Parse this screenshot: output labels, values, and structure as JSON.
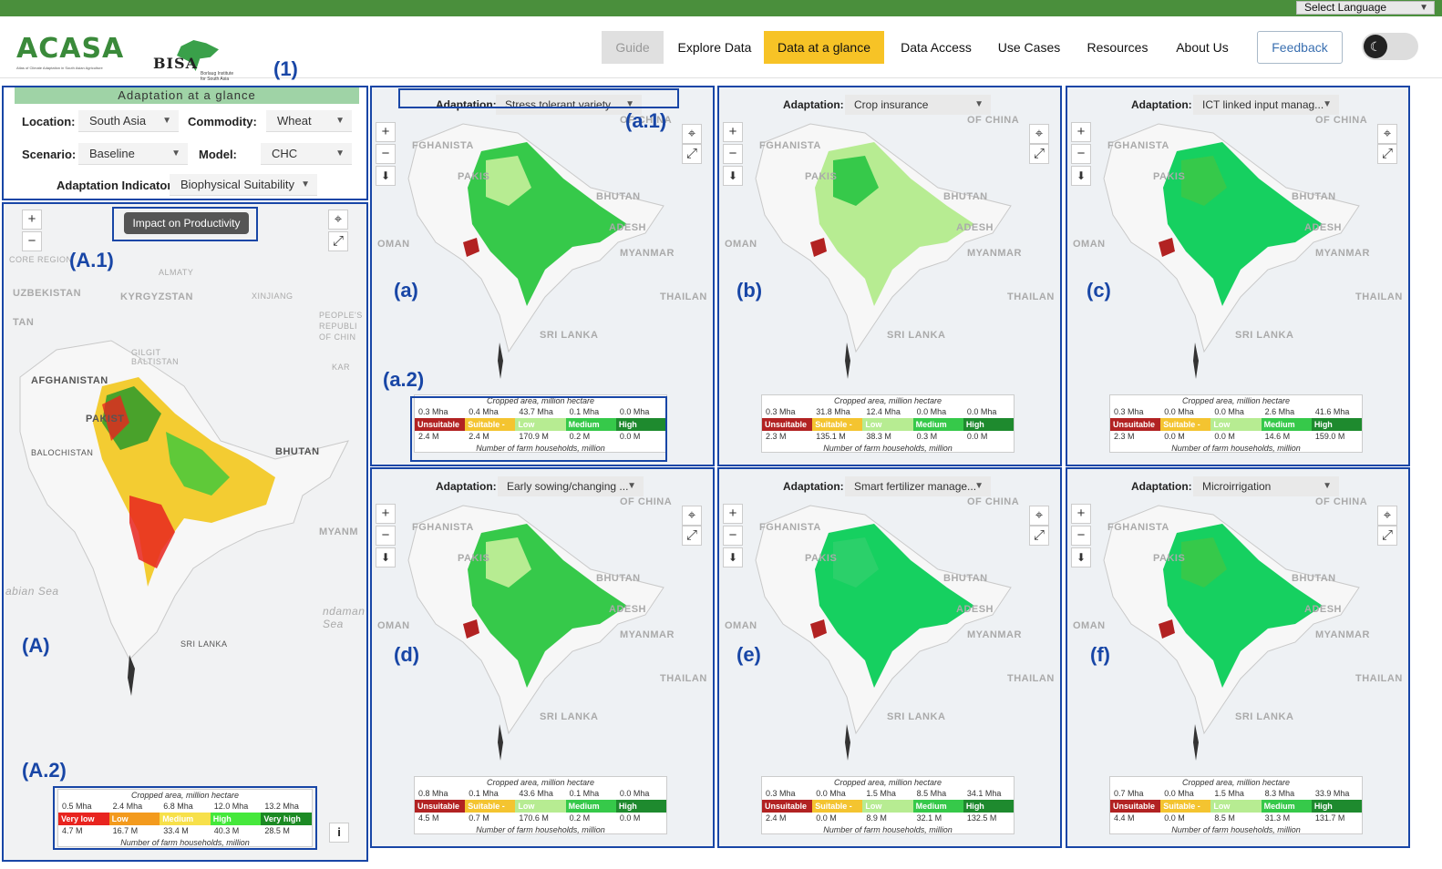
{
  "header": {
    "language_label": "Select Language",
    "logo_text": "ACASA",
    "logo_subtitle": "Atlas of Climate Adaptation in South Asian Agriculture",
    "partner_logo": "BISA",
    "partner_subtitle": "Borlaug Institute for South Asia",
    "nav": [
      "Guide",
      "Explore Data",
      "Data at a glance",
      "Data Access",
      "Use Cases",
      "Resources",
      "About Us"
    ],
    "active_nav": "Data at a glance",
    "feedback_label": "Feedback",
    "theme_toggle_icon": "moon-icon"
  },
  "annotations": {
    "panel": "(1)",
    "main": "(A)",
    "main_btn": "(A.1)",
    "main_legend": "(A.2)",
    "a": "(a)",
    "b": "(b)",
    "c": "(c)",
    "d": "(d)",
    "e": "(e)",
    "f": "(f)",
    "a1": "(a.1)",
    "a2": "(a.2)"
  },
  "controls": {
    "title": "Adaptation at a glance",
    "location_label": "Location:",
    "location_value": "South Asia",
    "commodity_label": "Commodity:",
    "commodity_value": "Wheat",
    "scenario_label": "Scenario:",
    "scenario_value": "Baseline",
    "model_label": "Model:",
    "model_value": "CHC",
    "indicator_label": "Adaptation Indicator:",
    "indicator_value": "Biophysical Suitability"
  },
  "main_map": {
    "impact_button": "Impact on Productivity",
    "info_button": "i",
    "places": [
      "AFGHANISTAN",
      "UZBEKISTAN",
      "KYRGYZSTAN",
      "PAKIST",
      "BALOCHISTAN",
      "BHUTAN",
      "MYANM",
      "SRI LANKA",
      "PEOPLE'S REPUBLI OF CHIN",
      "abian Sea",
      "ndaman Sea",
      "ALMATY",
      "XINJIANG",
      "GILGIT BALTISTAN",
      "KAR",
      "TAN",
      "CORE REGION"
    ],
    "legend": {
      "title": "Cropped area, million hectare",
      "area": [
        "0.5 Mha",
        "2.4 Mha",
        "6.8 Mha",
        "12.0 Mha",
        "13.2 Mha"
      ],
      "classes": [
        "Very low",
        "Low",
        "Medium",
        "High",
        "Very high"
      ],
      "households": [
        "4.7 M",
        "16.7 M",
        "33.4 M",
        "40.3 M",
        "28.5 M"
      ],
      "footer": "Number of farm households, million",
      "colors": [
        "#e8241f",
        "#f39a1d",
        "#f7e04a",
        "#45c93b",
        "#1c8a24"
      ]
    }
  },
  "adaptation_label": "Adaptation:",
  "legend_common": {
    "title": "Cropped area, million hectare",
    "classes": [
      "Unsuitable",
      "Suitable -",
      "Low",
      "Medium",
      "High"
    ],
    "footer": "Number of farm households, million",
    "colors": [
      "#b22222",
      "#f4c430",
      "#b7ec92",
      "#36c94a",
      "#1e8a2e"
    ]
  },
  "panels": [
    {
      "adaptation": "Stress tolerant variety",
      "area": [
        "0.3 Mha",
        "0.4 Mha",
        "43.7 Mha",
        "0.1 Mha",
        "0.0 Mha"
      ],
      "households": [
        "2.4 M",
        "2.4 M",
        "170.9 M",
        "0.2 M",
        "0.0 M"
      ]
    },
    {
      "adaptation": "Crop insurance",
      "area": [
        "0.3 Mha",
        "31.8 Mha",
        "12.4 Mha",
        "0.0 Mha",
        "0.0 Mha"
      ],
      "households": [
        "2.3 M",
        "135.1 M",
        "38.3 M",
        "0.3 M",
        "0.0 M"
      ]
    },
    {
      "adaptation": "ICT linked input manag...",
      "area": [
        "0.3 Mha",
        "0.0 Mha",
        "0.0 Mha",
        "2.6 Mha",
        "41.6 Mha"
      ],
      "households": [
        "2.3 M",
        "0.0 M",
        "0.0 M",
        "14.6 M",
        "159.0 M"
      ]
    },
    {
      "adaptation": "Early sowing/changing ...",
      "area": [
        "0.8 Mha",
        "0.1 Mha",
        "43.6 Mha",
        "0.1 Mha",
        "0.0 Mha"
      ],
      "households": [
        "4.5 M",
        "0.7 M",
        "170.6 M",
        "0.2 M",
        "0.0 M"
      ]
    },
    {
      "adaptation": "Smart fertilizer manage...",
      "area": [
        "0.3 Mha",
        "0.0 Mha",
        "1.5 Mha",
        "8.5 Mha",
        "34.1 Mha"
      ],
      "households": [
        "2.4 M",
        "0.0 M",
        "8.9 M",
        "32.1 M",
        "132.5 M"
      ]
    },
    {
      "adaptation": "Microirrigation",
      "area": [
        "0.7 Mha",
        "0.0 Mha",
        "1.5 Mha",
        "8.3 Mha",
        "33.9 Mha"
      ],
      "households": [
        "4.4 M",
        "0.0 M",
        "8.5 M",
        "31.3 M",
        "131.7 M"
      ]
    }
  ],
  "panel_places": [
    "FGHANISTA",
    "PAKIS",
    "BHUTAN",
    "ADESH",
    "OMAN",
    "MYANMAR",
    "THAILAN",
    "SRI LANKA",
    "OF CHINA"
  ]
}
